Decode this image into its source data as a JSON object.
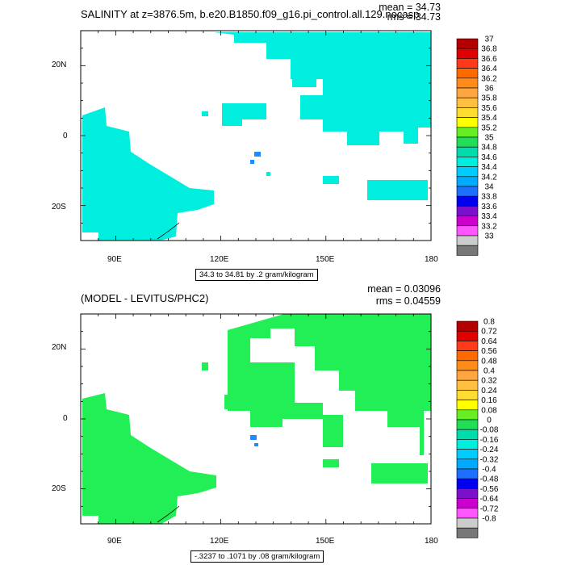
{
  "chart_data": [
    {
      "type": "heatmap",
      "title": "SALINITY at z=3876.5m, b.e20.B1850.f09_g16.pi_control.all.129.nocasp.01 [157]",
      "stats": {
        "mean": "mean = 34.73",
        "rms": "rms = 34.73"
      },
      "x_ticks": [
        "90E",
        "120E",
        "150E",
        "180"
      ],
      "y_ticks": [
        "20N",
        "0",
        "20S"
      ],
      "x_range": [
        80,
        180
      ],
      "y_range": [
        -30,
        30
      ],
      "contour_info": "34.3 to 34.81 by .2 gram/kilogram",
      "colorbar_labels": [
        "37",
        "36.8",
        "36.6",
        "36.4",
        "36.2",
        "36",
        "35.8",
        "35.6",
        "35.4",
        "35.2",
        "35",
        "34.8",
        "34.6",
        "34.4",
        "34.2",
        "34",
        "33.8",
        "33.6",
        "33.4",
        "33.2",
        "33"
      ],
      "colorbar_colors": [
        "#b40000",
        "#e00000",
        "#ff3a1a",
        "#ff6a00",
        "#ff8c1a",
        "#ffa640",
        "#ffc040",
        "#ffdc30",
        "#ffff00",
        "#66ee22",
        "#22dd55",
        "#00ddaa",
        "#00eedd",
        "#00ccff",
        "#00aaff",
        "#1e6eff",
        "#0000ee",
        "#7a10cc",
        "#cc00cc",
        "#ff55ff",
        "#cccccc",
        "#777777"
      ],
      "dominant_value_color": "#00eedd",
      "accent_color": "#1e8cff"
    },
    {
      "type": "heatmap",
      "title": "(MODEL - LEVITUS/PHC2)",
      "stats": {
        "mean": "mean = 0.03096",
        "rms": "rms = 0.04559"
      },
      "x_ticks": [
        "90E",
        "120E",
        "150E",
        "180"
      ],
      "y_ticks": [
        "20N",
        "0",
        "20S"
      ],
      "x_range": [
        80,
        180
      ],
      "y_range": [
        -30,
        30
      ],
      "contour_info": "-.3237 to .1071 by .08 gram/kilogram",
      "colorbar_labels": [
        "0.8",
        "0.72",
        "0.64",
        "0.56",
        "0.48",
        "0.4",
        "0.32",
        "0.24",
        "0.16",
        "0.08",
        "0",
        "-0.08",
        "-0.16",
        "-0.24",
        "-0.32",
        "-0.4",
        "-0.48",
        "-0.56",
        "-0.64",
        "-0.72",
        "-0.8"
      ],
      "colorbar_colors": [
        "#b40000",
        "#e00000",
        "#ff3a1a",
        "#ff6a00",
        "#ff8c1a",
        "#ffa640",
        "#ffc040",
        "#ffdc30",
        "#ffff00",
        "#66ee22",
        "#22dd55",
        "#00ddaa",
        "#00eedd",
        "#00ccff",
        "#00aaff",
        "#1e6eff",
        "#0000ee",
        "#7a10cc",
        "#cc00cc",
        "#ff55ff",
        "#cccccc",
        "#777777"
      ],
      "dominant_value_color": "#22ee55",
      "accent_color": "#1e8cff"
    }
  ]
}
